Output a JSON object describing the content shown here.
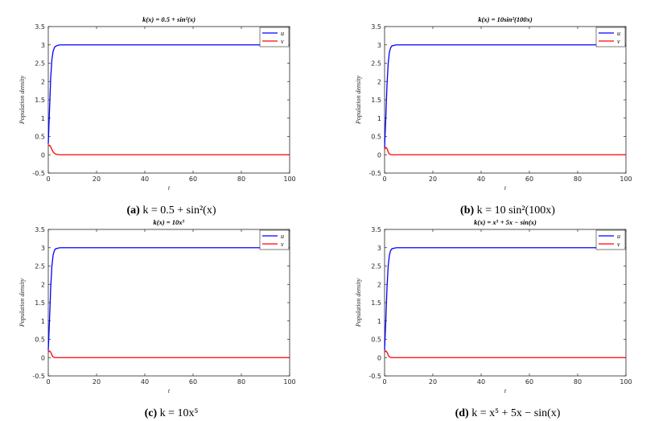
{
  "chart_data": [
    {
      "type": "line",
      "title": "k(x) = 0.5 + sin²(x)",
      "caption_letter": "(a)",
      "caption_expr": "k = 0.5 + sin²(x)",
      "xlabel": "t",
      "ylabel": "Population  density",
      "xlim": [
        0,
        100
      ],
      "ylim": [
        -0.5,
        3.5
      ],
      "xticks": [
        "0",
        "20",
        "40",
        "60",
        "80",
        "100"
      ],
      "yticks": [
        "-0.5",
        "0",
        "0.5",
        "1",
        "1.5",
        "2",
        "2.5",
        "3",
        "3.5"
      ],
      "legend_position": "top-right",
      "grid": false,
      "series": [
        {
          "name": "u",
          "color": "#0000ff",
          "x": [
            0,
            0.5,
            1,
            1.5,
            2,
            2.5,
            3,
            4,
            5,
            10,
            20,
            40,
            60,
            80,
            100
          ],
          "y": [
            0.3,
            1.2,
            2.1,
            2.6,
            2.82,
            2.92,
            2.96,
            2.99,
            3.0,
            3.0,
            3.0,
            3.0,
            3.0,
            3.0,
            3.0
          ]
        },
        {
          "name": "v",
          "color": "#ff0000",
          "x": [
            0,
            0.5,
            1,
            1.5,
            2,
            2.5,
            3,
            4,
            5,
            10,
            20,
            40,
            60,
            80,
            100
          ],
          "y": [
            0.25,
            0.26,
            0.22,
            0.14,
            0.08,
            0.04,
            0.02,
            0.005,
            0.0,
            0.0,
            0.0,
            0.0,
            0.0,
            0.0,
            0.0
          ]
        }
      ]
    },
    {
      "type": "line",
      "title": "k(x) = 10sin²(100x)",
      "caption_letter": "(b)",
      "caption_expr": "k = 10 sin²(100x)",
      "xlabel": "t",
      "ylabel": "Population  density",
      "xlim": [
        0,
        100
      ],
      "ylim": [
        -0.5,
        3.5
      ],
      "xticks": [
        "0",
        "20",
        "40",
        "60",
        "80",
        "100"
      ],
      "yticks": [
        "-0.5",
        "0",
        "0.5",
        "1",
        "1.5",
        "2",
        "2.5",
        "3",
        "3.5"
      ],
      "legend_position": "top-right",
      "grid": false,
      "series": [
        {
          "name": "u",
          "color": "#0000ff",
          "x": [
            0,
            0.5,
            1,
            1.5,
            2,
            2.5,
            3,
            4,
            5,
            10,
            20,
            40,
            60,
            80,
            100
          ],
          "y": [
            0.2,
            1.0,
            1.9,
            2.5,
            2.8,
            2.92,
            2.97,
            2.99,
            3.0,
            3.0,
            3.0,
            3.0,
            3.0,
            3.0,
            3.0
          ]
        },
        {
          "name": "v",
          "color": "#ff0000",
          "x": [
            0,
            0.5,
            1,
            1.5,
            2,
            2.5,
            3,
            4,
            5,
            10,
            20,
            40,
            60,
            80,
            100
          ],
          "y": [
            0.15,
            0.2,
            0.17,
            0.08,
            0.02,
            0.005,
            0.0,
            0.0,
            0.0,
            0.0,
            0.0,
            0.0,
            0.0,
            0.0,
            0.0
          ]
        }
      ]
    },
    {
      "type": "line",
      "title": "k(x) = 10x⁵",
      "caption_letter": "(c)",
      "caption_expr": "k = 10x⁵",
      "xlabel": "t",
      "ylabel": "Population  density",
      "xlim": [
        0,
        100
      ],
      "ylim": [
        -0.5,
        3.5
      ],
      "xticks": [
        "0",
        "20",
        "40",
        "60",
        "80",
        "100"
      ],
      "yticks": [
        "-0.5",
        "0",
        "0.5",
        "1",
        "1.5",
        "2",
        "2.5",
        "3",
        "3.5"
      ],
      "legend_position": "top-right",
      "grid": false,
      "series": [
        {
          "name": "u",
          "color": "#0000ff",
          "x": [
            0,
            0.5,
            1,
            1.5,
            2,
            2.5,
            3,
            4,
            5,
            10,
            20,
            40,
            60,
            80,
            100
          ],
          "y": [
            0.2,
            1.0,
            1.9,
            2.5,
            2.8,
            2.92,
            2.97,
            2.99,
            3.0,
            3.0,
            3.0,
            3.0,
            3.0,
            3.0,
            3.0
          ]
        },
        {
          "name": "v",
          "color": "#ff0000",
          "x": [
            0,
            0.5,
            1,
            1.5,
            2,
            2.5,
            3,
            4,
            5,
            10,
            20,
            40,
            60,
            80,
            100
          ],
          "y": [
            0.15,
            0.18,
            0.15,
            0.07,
            0.02,
            0.005,
            0.0,
            0.0,
            0.0,
            0.0,
            0.0,
            0.0,
            0.0,
            0.0,
            0.0
          ]
        }
      ]
    },
    {
      "type": "line",
      "title": "k(x) = x⁵ + 5x − sin(x)",
      "caption_letter": "(d)",
      "caption_expr": "k = x⁵ + 5x − sin(x)",
      "xlabel": "t",
      "ylabel": "Population  density",
      "xlim": [
        0,
        100
      ],
      "ylim": [
        -0.5,
        3.5
      ],
      "xticks": [
        "0",
        "20",
        "40",
        "60",
        "80",
        "100"
      ],
      "yticks": [
        "-0.5",
        "0",
        "0.5",
        "1",
        "1.5",
        "2",
        "2.5",
        "3",
        "3.5"
      ],
      "legend_position": "top-right",
      "grid": false,
      "series": [
        {
          "name": "u",
          "color": "#0000ff",
          "x": [
            0,
            0.5,
            1,
            1.5,
            2,
            2.5,
            3,
            4,
            5,
            10,
            20,
            40,
            60,
            80,
            100
          ],
          "y": [
            0.2,
            1.0,
            1.9,
            2.5,
            2.8,
            2.92,
            2.97,
            2.99,
            3.0,
            3.0,
            3.0,
            3.0,
            3.0,
            3.0,
            3.0
          ]
        },
        {
          "name": "v",
          "color": "#ff0000",
          "x": [
            0,
            0.5,
            1,
            1.5,
            2,
            2.5,
            3,
            4,
            5,
            10,
            20,
            40,
            60,
            80,
            100
          ],
          "y": [
            0.15,
            0.18,
            0.15,
            0.07,
            0.02,
            0.005,
            0.0,
            0.0,
            0.0,
            0.0,
            0.0,
            0.0,
            0.0,
            0.0,
            0.0
          ]
        }
      ]
    }
  ]
}
